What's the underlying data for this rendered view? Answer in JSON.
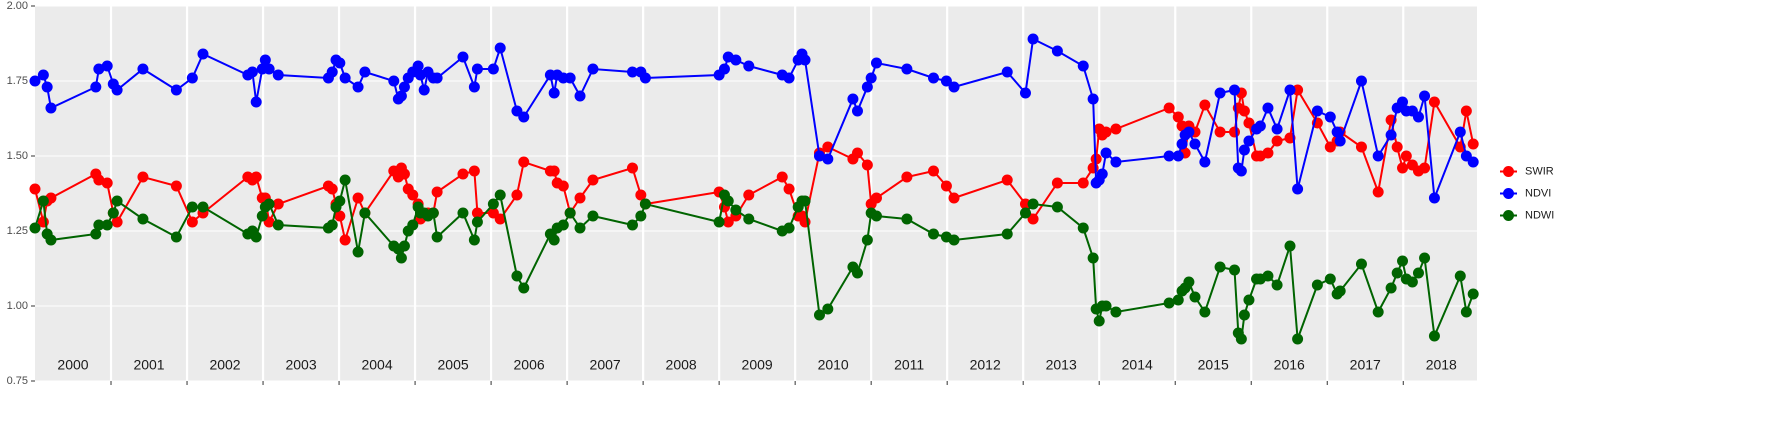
{
  "chart_data": {
    "type": "line",
    "x": [
      2000.0,
      2000.11,
      2000.16,
      2000.21,
      2000.8,
      2000.84,
      2000.95,
      2001.03,
      2001.08,
      2001.42,
      2001.86,
      2002.07,
      2002.21,
      2002.8,
      2002.86,
      2002.91,
      2002.99,
      2003.03,
      2003.08,
      2003.2,
      2003.86,
      2003.91,
      2003.96,
      2004.01,
      2004.08,
      2004.25,
      2004.34,
      2004.72,
      2004.78,
      2004.82,
      2004.86,
      2004.91,
      2004.97,
      2005.04,
      2005.07,
      2005.12,
      2005.17,
      2005.24,
      2005.29,
      2005.63,
      2005.78,
      2005.82,
      2006.03,
      2006.12,
      2006.34,
      2006.43,
      2006.78,
      2006.83,
      2006.87,
      2006.95,
      2007.04,
      2007.17,
      2007.34,
      2007.86,
      2007.97,
      2008.03,
      2009.0,
      2009.07,
      2009.12,
      2009.22,
      2009.39,
      2009.83,
      2009.92,
      2010.04,
      2010.09,
      2010.13,
      2010.32,
      2010.43,
      2010.76,
      2010.82,
      2010.95,
      2011.0,
      2011.07,
      2011.47,
      2011.82,
      2011.99,
      2012.09,
      2012.79,
      2013.03,
      2013.13,
      2013.45,
      2013.79,
      2013.92,
      2013.96,
      2014.0,
      2014.04,
      2014.09,
      2014.22,
      2014.92,
      2015.04,
      2015.09,
      2015.13,
      2015.18,
      2015.26,
      2015.39,
      2015.59,
      2015.78,
      2015.83,
      2015.87,
      2015.91,
      2015.97,
      2016.07,
      2016.12,
      2016.22,
      2016.34,
      2016.51,
      2016.61,
      2016.87,
      2017.04,
      2017.13,
      2017.17,
      2017.45,
      2017.67,
      2017.84,
      2017.92,
      2017.99,
      2018.04,
      2018.12,
      2018.2,
      2018.28,
      2018.41,
      2018.75,
      2018.83,
      2018.92
    ],
    "series": [
      {
        "name": "SWIR",
        "color": "#ff0000",
        "values": [
          1.39,
          1.28,
          1.35,
          1.36,
          1.44,
          1.42,
          1.41,
          1.31,
          1.28,
          1.43,
          1.4,
          1.28,
          1.31,
          1.43,
          1.42,
          1.43,
          1.36,
          1.36,
          1.28,
          1.34,
          1.4,
          1.39,
          1.34,
          1.3,
          1.22,
          1.36,
          1.31,
          1.45,
          1.43,
          1.46,
          1.44,
          1.39,
          1.37,
          1.34,
          1.29,
          1.3,
          1.31,
          1.31,
          1.38,
          1.44,
          1.45,
          1.31,
          1.31,
          1.29,
          1.37,
          1.48,
          1.45,
          1.45,
          1.41,
          1.4,
          1.31,
          1.36,
          1.42,
          1.46,
          1.37,
          1.34,
          1.38,
          1.33,
          1.28,
          1.3,
          1.37,
          1.43,
          1.39,
          1.3,
          1.3,
          1.28,
          1.51,
          1.53,
          1.49,
          1.51,
          1.47,
          1.34,
          1.36,
          1.43,
          1.45,
          1.4,
          1.36,
          1.42,
          1.34,
          1.29,
          1.41,
          1.41,
          1.46,
          1.49,
          1.59,
          1.57,
          1.58,
          1.59,
          1.66,
          1.63,
          1.6,
          1.51,
          1.6,
          1.58,
          1.67,
          1.58,
          1.58,
          1.66,
          1.71,
          1.65,
          1.61,
          1.5,
          1.5,
          1.51,
          1.55,
          1.56,
          1.72,
          1.61,
          1.53,
          1.55,
          1.58,
          1.53,
          1.38,
          1.62,
          1.53,
          1.46,
          1.5,
          1.47,
          1.45,
          1.46,
          1.68,
          1.53,
          1.65,
          1.54
        ]
      },
      {
        "name": "NDVI",
        "color": "#0000ff",
        "values": [
          1.75,
          1.77,
          1.73,
          1.66,
          1.73,
          1.79,
          1.8,
          1.74,
          1.72,
          1.79,
          1.72,
          1.76,
          1.84,
          1.77,
          1.78,
          1.68,
          1.79,
          1.82,
          1.79,
          1.77,
          1.76,
          1.78,
          1.82,
          1.81,
          1.76,
          1.73,
          1.78,
          1.75,
          1.69,
          1.7,
          1.73,
          1.76,
          1.78,
          1.8,
          1.77,
          1.72,
          1.78,
          1.76,
          1.76,
          1.83,
          1.73,
          1.79,
          1.79,
          1.86,
          1.65,
          1.63,
          1.77,
          1.71,
          1.77,
          1.76,
          1.76,
          1.7,
          1.79,
          1.78,
          1.78,
          1.76,
          1.77,
          1.79,
          1.83,
          1.82,
          1.8,
          1.77,
          1.76,
          1.82,
          1.84,
          1.82,
          1.5,
          1.49,
          1.69,
          1.65,
          1.73,
          1.76,
          1.81,
          1.79,
          1.76,
          1.75,
          1.73,
          1.78,
          1.71,
          1.89,
          1.85,
          1.8,
          1.69,
          1.41,
          1.42,
          1.44,
          1.51,
          1.48,
          1.5,
          1.5,
          1.54,
          1.57,
          1.58,
          1.54,
          1.48,
          1.71,
          1.72,
          1.46,
          1.45,
          1.52,
          1.55,
          1.59,
          1.6,
          1.66,
          1.59,
          1.72,
          1.39,
          1.65,
          1.63,
          1.58,
          1.55,
          1.75,
          1.5,
          1.57,
          1.66,
          1.68,
          1.65,
          1.65,
          1.63,
          1.7,
          1.36,
          1.58,
          1.5,
          1.48
        ]
      },
      {
        "name": "NDWI",
        "color": "#006400",
        "values": [
          1.26,
          1.35,
          1.24,
          1.22,
          1.24,
          1.27,
          1.27,
          1.31,
          1.35,
          1.29,
          1.23,
          1.33,
          1.33,
          1.24,
          1.25,
          1.23,
          1.3,
          1.33,
          1.34,
          1.27,
          1.26,
          1.27,
          1.33,
          1.35,
          1.42,
          1.18,
          1.31,
          1.2,
          1.19,
          1.16,
          1.2,
          1.25,
          1.27,
          1.33,
          1.31,
          1.31,
          1.3,
          1.31,
          1.23,
          1.31,
          1.22,
          1.28,
          1.34,
          1.37,
          1.1,
          1.06,
          1.24,
          1.22,
          1.26,
          1.27,
          1.31,
          1.26,
          1.3,
          1.27,
          1.3,
          1.34,
          1.28,
          1.37,
          1.35,
          1.32,
          1.29,
          1.25,
          1.26,
          1.33,
          1.35,
          1.35,
          0.97,
          0.99,
          1.13,
          1.11,
          1.22,
          1.31,
          1.3,
          1.29,
          1.24,
          1.23,
          1.22,
          1.24,
          1.31,
          1.34,
          1.33,
          1.26,
          1.16,
          0.99,
          0.95,
          1.0,
          1.0,
          0.98,
          1.01,
          1.02,
          1.05,
          1.06,
          1.08,
          1.03,
          0.98,
          1.13,
          1.12,
          0.91,
          0.89,
          0.97,
          1.02,
          1.09,
          1.09,
          1.1,
          1.07,
          1.2,
          0.89,
          1.07,
          1.09,
          1.04,
          1.05,
          1.14,
          0.98,
          1.06,
          1.11,
          1.15,
          1.09,
          1.08,
          1.11,
          1.16,
          0.9,
          1.1,
          0.98,
          1.04
        ]
      }
    ],
    "xlim": [
      2000,
      2018.97
    ],
    "ylim": [
      0.75,
      2.0
    ],
    "yticks": [
      {
        "value": 0.75,
        "label": "0.75"
      },
      {
        "value": 1.0,
        "label": "1.00"
      },
      {
        "value": 1.25,
        "label": "1.25"
      },
      {
        "value": 1.5,
        "label": "1.50"
      },
      {
        "value": 1.75,
        "label": "1.75"
      },
      {
        "value": 2.0,
        "label": "2.00"
      }
    ],
    "year_bands": [
      {
        "start": 2000,
        "label": "2000"
      },
      {
        "start": 2001,
        "label": "2001"
      },
      {
        "start": 2002,
        "label": "2002"
      },
      {
        "start": 2003,
        "label": "2003"
      },
      {
        "start": 2004,
        "label": "2004"
      },
      {
        "start": 2005,
        "label": "2005"
      },
      {
        "start": 2006,
        "label": "2006"
      },
      {
        "start": 2007,
        "label": "2007"
      },
      {
        "start": 2008,
        "label": "2008"
      },
      {
        "start": 2009,
        "label": "2009"
      },
      {
        "start": 2010,
        "label": "2010"
      },
      {
        "start": 2011,
        "label": "2011"
      },
      {
        "start": 2012,
        "label": "2012"
      },
      {
        "start": 2013,
        "label": "2013"
      },
      {
        "start": 2014,
        "label": "2014"
      },
      {
        "start": 2015,
        "label": "2015"
      },
      {
        "start": 2016,
        "label": "2016"
      },
      {
        "start": 2017,
        "label": "2017"
      },
      {
        "start": 2018,
        "label": "2018"
      }
    ],
    "grid": true,
    "legend": "right"
  }
}
